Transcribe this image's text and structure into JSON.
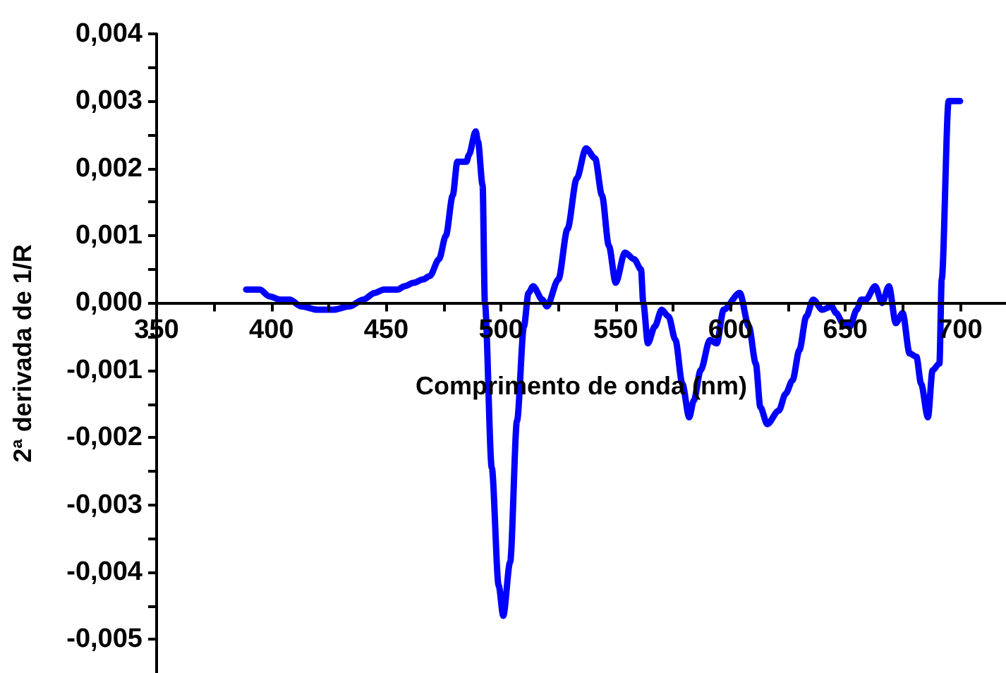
{
  "chart_data": {
    "type": "line",
    "xlabel": "Comprimento de onda (nm)",
    "ylabel": "2ª derivada de 1/R",
    "x": [
      389,
      395,
      399,
      404,
      408,
      413,
      420,
      427,
      434,
      440,
      445,
      449,
      455,
      458,
      462,
      466,
      469,
      473,
      476,
      479,
      481,
      485,
      486,
      489,
      490,
      492,
      493,
      496,
      499,
      501,
      504,
      507,
      510,
      512,
      514,
      518,
      520,
      525,
      529,
      533,
      537,
      541,
      544,
      547,
      550,
      554,
      558,
      561,
      562,
      564,
      567,
      570,
      573,
      576,
      579,
      582,
      584,
      587,
      591,
      594,
      597,
      604,
      608,
      611,
      613,
      616,
      621,
      624,
      627,
      630,
      633,
      636,
      640,
      644,
      646,
      649,
      652,
      655,
      657,
      659,
      663,
      666,
      669,
      672,
      675,
      678,
      681,
      683,
      686,
      688,
      691,
      692,
      695,
      700
    ],
    "series": [
      {
        "color": "#0000ff",
        "values": [
          0.0002,
          0.0002,
          0.0001,
          5e-05,
          5e-05,
          -5e-05,
          -0.0001,
          -0.0001,
          -5e-05,
          5e-05,
          0.00015,
          0.0002,
          0.0002,
          0.00025,
          0.0003,
          0.00035,
          0.0004,
          0.00065,
          0.001,
          0.0016,
          0.0021,
          0.0021,
          0.0022,
          0.00255,
          0.0024,
          0.00175,
          0,
          -0.00245,
          -0.0042,
          -0.00465,
          -0.00385,
          -0.00175,
          -0.00035,
          0.00015,
          0.00025,
          5e-05,
          -5e-05,
          0.00035,
          0.0011,
          0.00185,
          0.0023,
          0.00215,
          0.0016,
          0.00085,
          0.0003,
          0.00075,
          0.00065,
          0.0005,
          0,
          -0.0006,
          -0.00035,
          -0.0001,
          -0.0002,
          -0.00055,
          -0.0012,
          -0.0017,
          -0.00145,
          -0.001,
          -0.00055,
          -0.0006,
          -0.0001,
          0.00015,
          -0.00035,
          -0.0009,
          -0.00155,
          -0.0018,
          -0.0016,
          -0.00135,
          -0.00115,
          -0.0007,
          -0.0002,
          5e-05,
          -0.0001,
          -5e-05,
          -0.00015,
          -0.0003,
          -0.00035,
          -0.0001,
          5e-05,
          5e-05,
          0.00025,
          0,
          0.00025,
          -0.0003,
          -0.00015,
          -0.00075,
          -0.0008,
          -0.0012,
          -0.0017,
          -0.001,
          -0.0009,
          0.00035,
          0.003,
          0.003
        ]
      }
    ],
    "xlim": [
      350,
      720
    ],
    "xticks": [
      350,
      {
        "value": 375,
        "label": null
      },
      400,
      {
        "value": 425,
        "label": null
      },
      450,
      {
        "value": 475,
        "label": null
      },
      500,
      {
        "value": 525,
        "label": null
      },
      550,
      {
        "value": 575,
        "label": null
      },
      600,
      {
        "value": 625,
        "label": null
      },
      650,
      {
        "value": 675,
        "label": null
      },
      700
    ],
    "ylim": [
      -0.0055,
      0.004
    ],
    "yticks": [
      {
        "value": -0.005,
        "label": "-0,005"
      },
      {
        "value": -0.0045,
        "label": null
      },
      {
        "value": -0.004,
        "label": "-0,004"
      },
      {
        "value": -0.0035,
        "label": null
      },
      {
        "value": -0.003,
        "label": "-0,003"
      },
      {
        "value": -0.0025,
        "label": null
      },
      {
        "value": -0.002,
        "label": "-0,002"
      },
      {
        "value": -0.0015,
        "label": null
      },
      {
        "value": -0.001,
        "label": "-0,001"
      },
      {
        "value": -0.0005,
        "label": null
      },
      {
        "value": 0,
        "label": "0,000"
      },
      {
        "value": 0.0005,
        "label": null
      },
      {
        "value": 0.001,
        "label": "0,001"
      },
      {
        "value": 0.0015,
        "label": null
      },
      {
        "value": 0.002,
        "label": "0,002"
      },
      {
        "value": 0.0025,
        "label": null
      },
      {
        "value": 0.003,
        "label": "0,003"
      },
      {
        "value": 0.0035,
        "label": null
      },
      {
        "value": 0.004,
        "label": "0,004"
      }
    ],
    "marker": "none",
    "line_style": "solid"
  }
}
